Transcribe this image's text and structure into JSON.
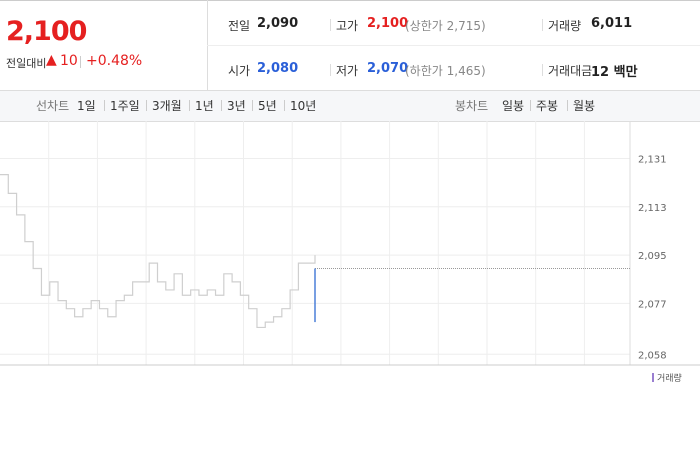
{
  "header": {
    "price": "2,100",
    "change_label": "전일대비",
    "change": "10",
    "change_pct": "+0.48%",
    "stats": [
      [
        "전일",
        "2,090"
      ],
      [
        "고가",
        "2,100",
        "(상한가 2,715)"
      ],
      [
        "거래량",
        "6,011"
      ],
      [
        "시가",
        "2,080"
      ],
      [
        "저가",
        "2,070",
        "(하한가 1,465)"
      ],
      [
        "거래대금",
        "12 백만"
      ]
    ]
  },
  "tabs": {
    "line_label": "선차트",
    "line": [
      "1일",
      "1주일",
      "3개월",
      "1년",
      "3년",
      "5년",
      "10년"
    ],
    "candle_label": "봉차트",
    "candle": [
      "일봉",
      "주봉",
      "월봉"
    ]
  },
  "chart_data": {
    "type": "line",
    "ylim": [
      2054,
      2145
    ],
    "xlim": [
      0,
      76
    ],
    "yticks": [
      {
        "value": 2131,
        "label": "2,131"
      },
      {
        "value": 2113,
        "label": "2,113"
      },
      {
        "value": 2095,
        "label": "2,095"
      },
      {
        "value": 2077,
        "label": "2,077"
      },
      {
        "value": 2058,
        "label": "2,058"
      }
    ],
    "reference_value": 2090,
    "series": [
      {
        "color": "#cfcfcf",
        "x": [
          0,
          1,
          2,
          3,
          4,
          5,
          6,
          7,
          8,
          9,
          10,
          11,
          12,
          13,
          14,
          15,
          16,
          17,
          18,
          19,
          20,
          21,
          22,
          23,
          24,
          25,
          26,
          27,
          28,
          29,
          30,
          31,
          32,
          33,
          34,
          35,
          36,
          37,
          38
        ],
        "values": [
          2125,
          2118,
          2110,
          2100,
          2090,
          2080,
          2085,
          2078,
          2075,
          2072,
          2075,
          2078,
          2075,
          2072,
          2078,
          2080,
          2085,
          2085,
          2092,
          2085,
          2082,
          2088,
          2080,
          2082,
          2080,
          2082,
          2080,
          2088,
          2085,
          2080,
          2075,
          2068,
          2070,
          2072,
          2075,
          2082,
          2092,
          2092,
          2095
        ]
      },
      {
        "color": "#4a7fd8",
        "x": [
          38,
          38
        ],
        "values": [
          2090,
          2070
        ]
      }
    ],
    "legend": "거래량"
  }
}
